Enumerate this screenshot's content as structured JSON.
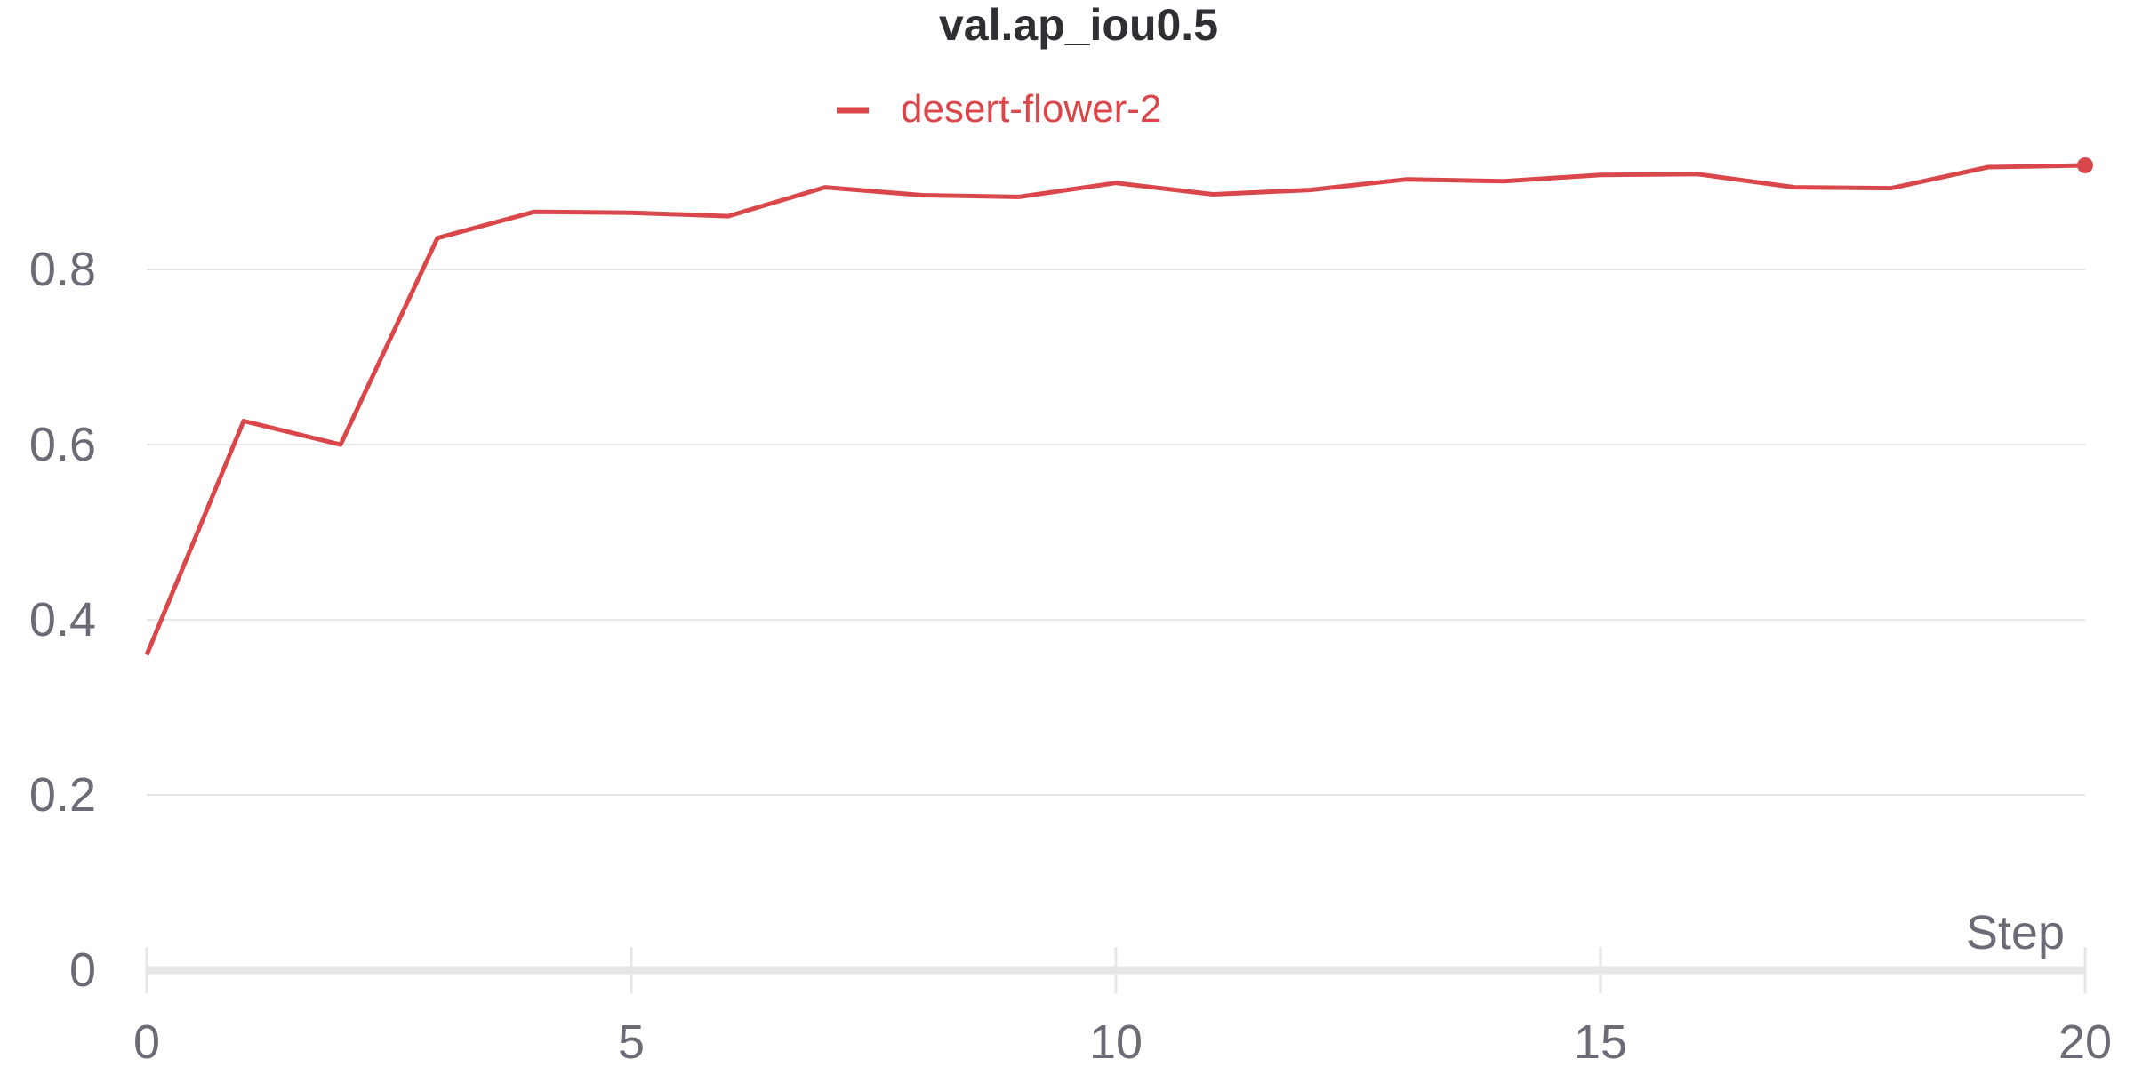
{
  "chart_data": {
    "type": "line",
    "title": "val.ap_iou0.5",
    "xlabel": "Step",
    "ylabel": "",
    "xlim": [
      0,
      20
    ],
    "ylim": [
      0,
      0.92
    ],
    "x_ticks": [
      0,
      5,
      10,
      15,
      20
    ],
    "y_ticks": [
      0,
      0.2,
      0.4,
      0.6,
      0.8
    ],
    "y_tick_labels": [
      "0",
      "0.2",
      "0.4",
      "0.6",
      "0.8"
    ],
    "x_tick_labels": [
      "0",
      "5",
      "10",
      "15",
      "20"
    ],
    "grid": "horizontal",
    "legend_position": "top-center",
    "series": [
      {
        "name": "desert-flower-2",
        "color": "#d9474b",
        "x": [
          0,
          1,
          2,
          3,
          4,
          5,
          6,
          7,
          8,
          9,
          10,
          11,
          12,
          13,
          14,
          15,
          16,
          17,
          18,
          19,
          20
        ],
        "values": [
          0.36,
          0.627,
          0.6,
          0.836,
          0.866,
          0.865,
          0.861,
          0.894,
          0.885,
          0.883,
          0.899,
          0.886,
          0.891,
          0.903,
          0.901,
          0.908,
          0.909,
          0.894,
          0.893,
          0.917,
          0.919
        ]
      }
    ]
  }
}
